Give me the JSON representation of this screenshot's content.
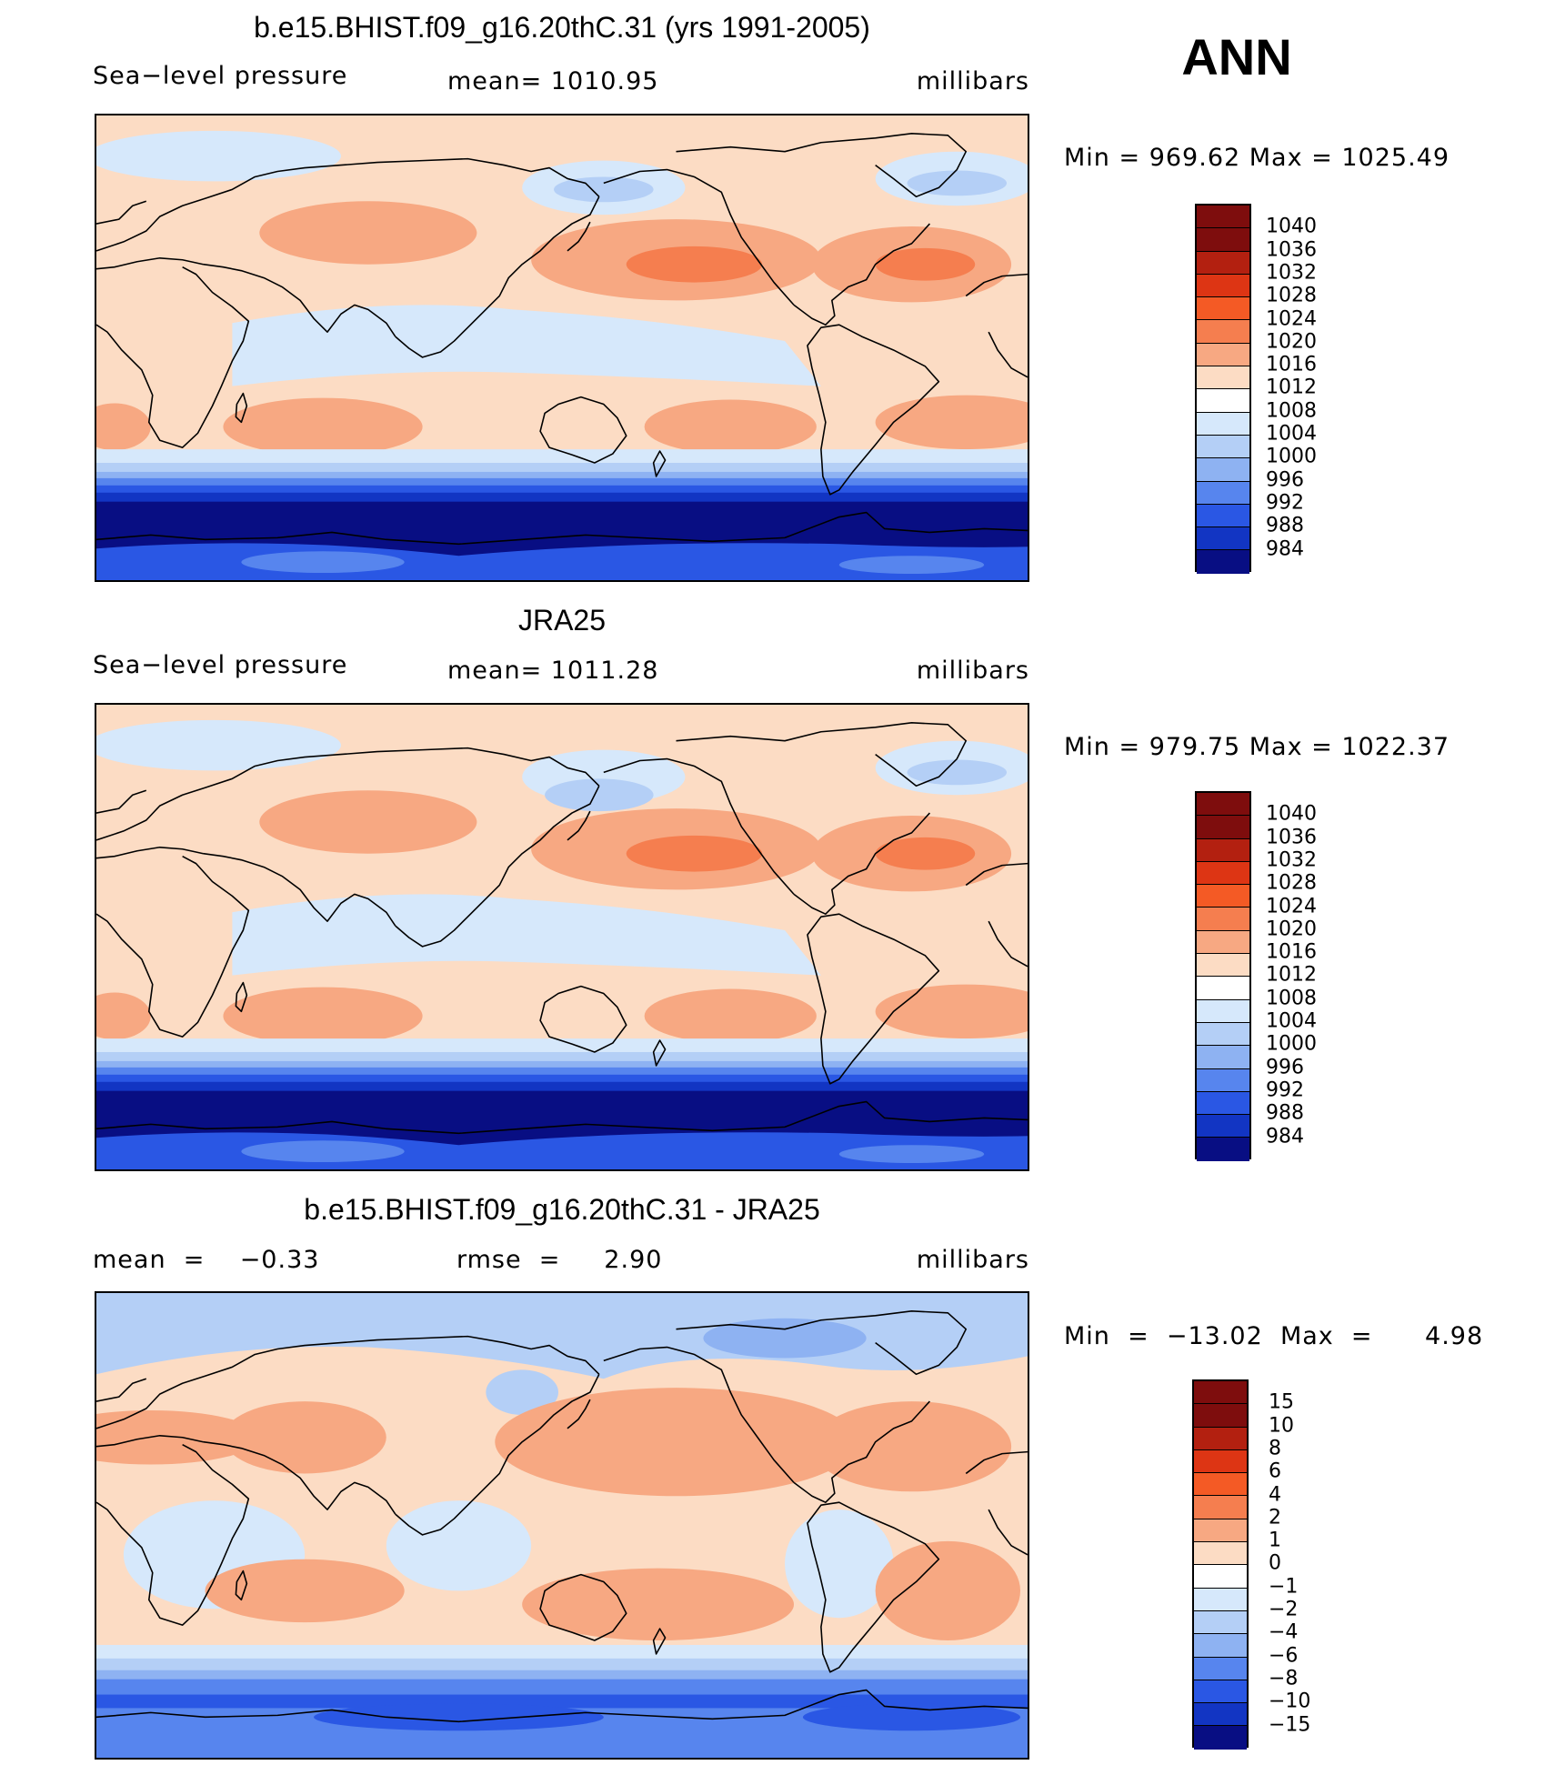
{
  "season": "ANN",
  "panels": [
    {
      "title": "b.e15.BHIST.f09_g16.20thC.31 (yrs 1991-2005)",
      "left_text": "Sea−level pressure",
      "center_text": "mean=  1010.95",
      "units": "millibars",
      "minmax": "Min  =  969.62  Max  =  1025.49",
      "legend_levels": [
        "1040",
        "1036",
        "1032",
        "1028",
        "1024",
        "1020",
        "1016",
        "1012",
        "1008",
        "1004",
        "1000",
        "996",
        "992",
        "988",
        "984"
      ],
      "legend_colors": [
        "#7e0d0d",
        "#b32010",
        "#dd3514",
        "#f45a25",
        "#f57e4f",
        "#f7a882",
        "#fcdcc4",
        "#ffffff",
        "#d6e8fb",
        "#b4cff6",
        "#8eb2f2",
        "#5785ee",
        "#2a57e4",
        "#1235c3",
        "#080e83"
      ]
    },
    {
      "title": "JRA25",
      "left_text": "Sea−level pressure",
      "center_text": "mean=  1011.28",
      "units": "millibars",
      "minmax": "Min  =  979.75  Max  =  1022.37",
      "legend_levels": [
        "1040",
        "1036",
        "1032",
        "1028",
        "1024",
        "1020",
        "1016",
        "1012",
        "1008",
        "1004",
        "1000",
        "996",
        "992",
        "988",
        "984"
      ],
      "legend_colors": [
        "#7e0d0d",
        "#b32010",
        "#dd3514",
        "#f45a25",
        "#f57e4f",
        "#f7a882",
        "#fcdcc4",
        "#ffffff",
        "#d6e8fb",
        "#b4cff6",
        "#8eb2f2",
        "#5785ee",
        "#2a57e4",
        "#1235c3",
        "#080e83"
      ]
    },
    {
      "title": "b.e15.BHIST.f09_g16.20thC.31 - JRA25",
      "left_text": "mean  =    −0.33",
      "center_text": "rmse  =     2.90",
      "units": "millibars",
      "minmax": "Min  =  −13.02  Max  =      4.98",
      "legend_levels": [
        "15",
        "10",
        "8",
        "6",
        "4",
        "2",
        "1",
        "0",
        "−1",
        "−2",
        "−4",
        "−6",
        "−8",
        "−10",
        "−15"
      ],
      "legend_colors": [
        "#7e0d0d",
        "#b32010",
        "#dd3514",
        "#f45a25",
        "#f57e4f",
        "#f7a882",
        "#fcdcc4",
        "#ffffff",
        "#d6e8fb",
        "#b4cff6",
        "#8eb2f2",
        "#5785ee",
        "#2a57e4",
        "#1235c3",
        "#080e83"
      ]
    }
  ]
}
